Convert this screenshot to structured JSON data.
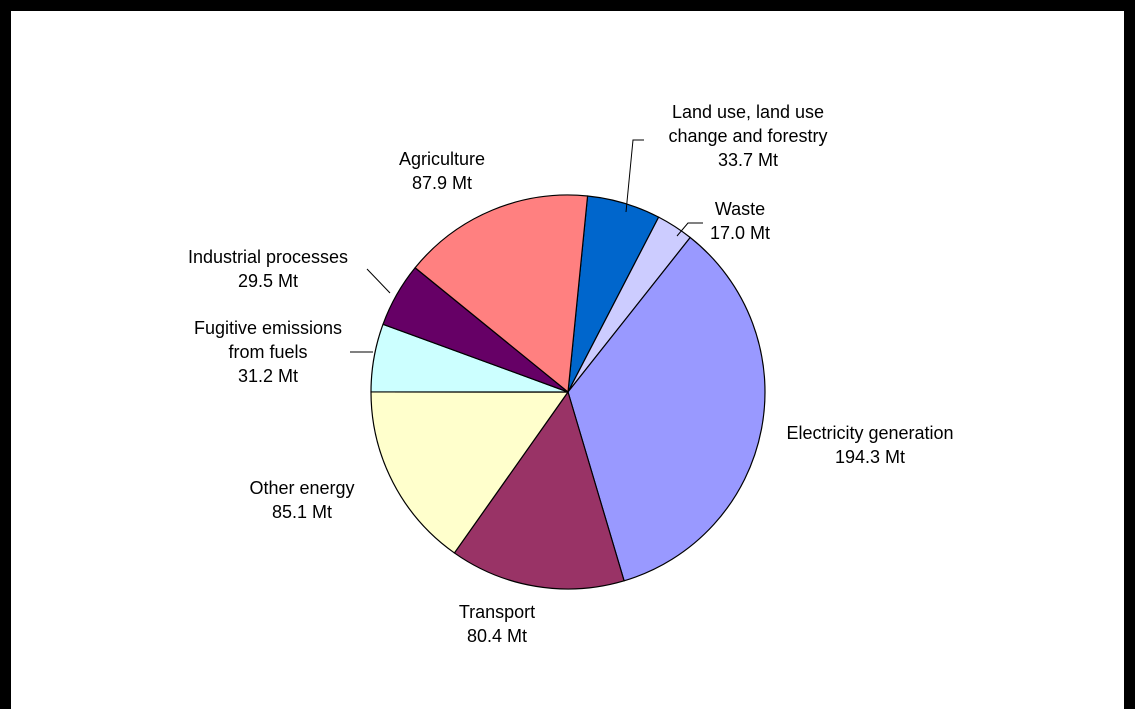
{
  "chart_data": {
    "type": "pie",
    "unit": "Mt",
    "start_angle_deg": 84.3,
    "direction": "clockwise",
    "slices": [
      {
        "label_lines": [
          "Land use, land use",
          "change and forestry"
        ],
        "value_text": "33.7 Mt",
        "value": 33.7,
        "color": "#0066cc"
      },
      {
        "label_lines": [
          "Waste"
        ],
        "value_text": "17.0 Mt",
        "value": 17.0,
        "color": "#ccccff"
      },
      {
        "label_lines": [
          "Electricity generation"
        ],
        "value_text": "194.3 Mt",
        "value": 194.3,
        "color": "#9999ff"
      },
      {
        "label_lines": [
          "Transport"
        ],
        "value_text": "80.4 Mt",
        "value": 80.4,
        "color": "#993366"
      },
      {
        "label_lines": [
          "Other energy"
        ],
        "value_text": "85.1 Mt",
        "value": 85.1,
        "color": "#ffffcc"
      },
      {
        "label_lines": [
          "Fugitive emissions",
          "from fuels"
        ],
        "value_text": "31.2 Mt",
        "value": 31.2,
        "color": "#ccffff"
      },
      {
        "label_lines": [
          "Industrial processes"
        ],
        "value_text": "29.5 Mt",
        "value": 29.5,
        "color": "#660066"
      },
      {
        "label_lines": [
          "Agriculture"
        ],
        "value_text": "87.9 Mt",
        "value": 87.9,
        "color": "#ff8080"
      }
    ]
  }
}
